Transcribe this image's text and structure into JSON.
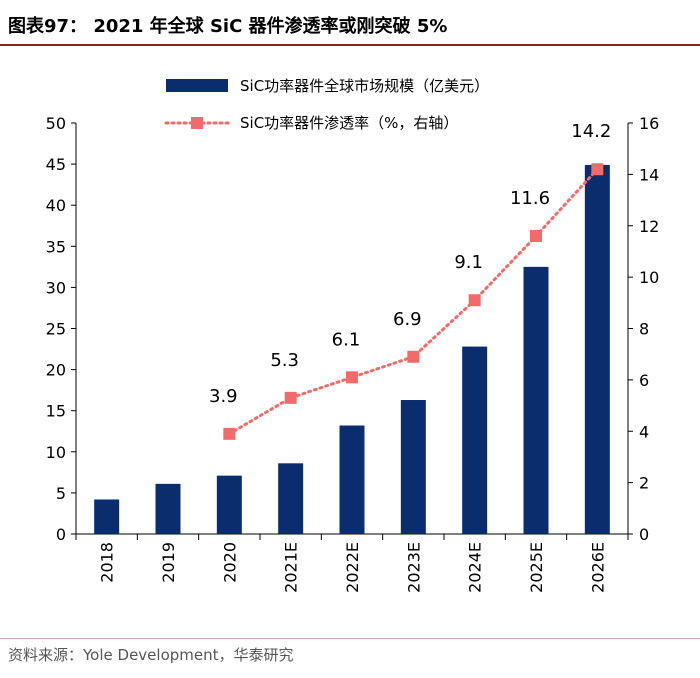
{
  "header": {
    "title": "图表97：  2021 年全球 SiC 器件渗透率或刚突破 5%"
  },
  "footer": {
    "source": "资料来源：Yole Development，华泰研究"
  },
  "colors": {
    "bar": "#0b2d6e",
    "line": "#f26a6a",
    "rule": "#8a1f24"
  },
  "chart_data": {
    "type": "bar+line",
    "categories": [
      "2018",
      "2019",
      "2020",
      "2021E",
      "2022E",
      "2023E",
      "2024E",
      "2025E",
      "2026E"
    ],
    "series": [
      {
        "name": "SiC功率器件全球市场规模（亿美元）",
        "type": "bar",
        "axis": "left",
        "values": [
          4.2,
          6.1,
          7.1,
          8.6,
          13.2,
          16.3,
          22.8,
          32.5,
          44.9
        ]
      },
      {
        "name": "SiC功率器件渗透率（%，右轴）",
        "type": "line",
        "axis": "right",
        "values": [
          null,
          null,
          3.9,
          5.3,
          6.1,
          6.9,
          9.1,
          11.6,
          14.2
        ],
        "labels": [
          "",
          "",
          "3.9",
          "5.3",
          "6.1",
          "6.9",
          "9.1",
          "11.6",
          "14.2"
        ]
      }
    ],
    "y_left": {
      "min": 0,
      "max": 50,
      "ticks": [
        "0",
        "5",
        "10",
        "15",
        "20",
        "25",
        "30",
        "35",
        "40",
        "45",
        "50"
      ]
    },
    "y_right": {
      "min": 0,
      "max": 16,
      "ticks": [
        "0",
        "2",
        "4",
        "6",
        "8",
        "10",
        "12",
        "14",
        "16"
      ]
    },
    "legend": {
      "position": "top-center"
    },
    "grid": false
  }
}
